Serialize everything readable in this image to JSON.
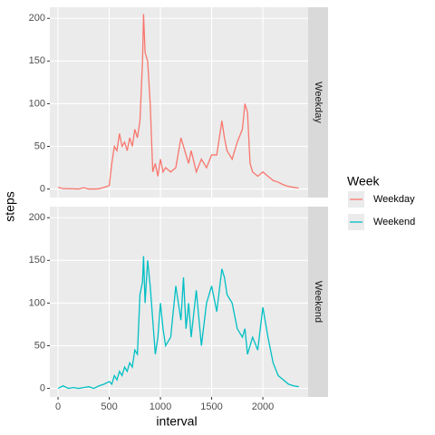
{
  "chart_data": {
    "type": "line",
    "x_label": "interval",
    "y_label": "steps",
    "legend_title": "Week",
    "x": [
      0,
      50,
      100,
      150,
      200,
      250,
      300,
      350,
      400,
      450,
      500,
      525,
      550,
      575,
      600,
      625,
      650,
      675,
      700,
      725,
      750,
      775,
      800,
      825,
      835,
      850,
      875,
      900,
      925,
      950,
      975,
      1000,
      1025,
      1050,
      1100,
      1150,
      1200,
      1225,
      1250,
      1275,
      1300,
      1350,
      1400,
      1450,
      1500,
      1550,
      1600,
      1625,
      1650,
      1700,
      1750,
      1800,
      1825,
      1850,
      1875,
      1900,
      1950,
      2000,
      2050,
      2100,
      2150,
      2200,
      2250,
      2300,
      2350
    ],
    "series": [
      {
        "name": "Weekday",
        "color": "#F8766D",
        "values": [
          2,
          0.5,
          0.4,
          0.2,
          0,
          1.5,
          0,
          0,
          0.3,
          2,
          4,
          30,
          50,
          45,
          65,
          50,
          55,
          45,
          60,
          50,
          70,
          60,
          80,
          150,
          205,
          160,
          150,
          100,
          20,
          30,
          15,
          35,
          20,
          25,
          20,
          25,
          60,
          50,
          40,
          30,
          45,
          20,
          35,
          25,
          40,
          40,
          80,
          60,
          45,
          35,
          55,
          70,
          100,
          90,
          30,
          20,
          15,
          20,
          15,
          10,
          8,
          5,
          3,
          2,
          1
        ]
      },
      {
        "name": "Weekend",
        "color": "#00BFC4",
        "values": [
          0,
          3,
          0,
          1,
          0,
          1,
          2,
          0,
          3,
          5,
          8,
          5,
          15,
          10,
          20,
          15,
          25,
          20,
          30,
          25,
          45,
          40,
          110,
          125,
          155,
          100,
          150,
          120,
          80,
          40,
          60,
          100,
          70,
          50,
          60,
          120,
          80,
          130,
          70,
          100,
          60,
          115,
          50,
          100,
          120,
          90,
          140,
          130,
          110,
          100,
          70,
          60,
          70,
          40,
          50,
          60,
          45,
          95,
          60,
          30,
          15,
          10,
          5,
          3,
          2
        ]
      }
    ],
    "xlim": [
      -80,
      2442
    ],
    "xticks": [
      0,
      500,
      1000,
      1500,
      2000
    ],
    "ylim": [
      -10,
      213
    ],
    "yticks": [
      0,
      50,
      100,
      150,
      200
    ],
    "grid": true
  }
}
